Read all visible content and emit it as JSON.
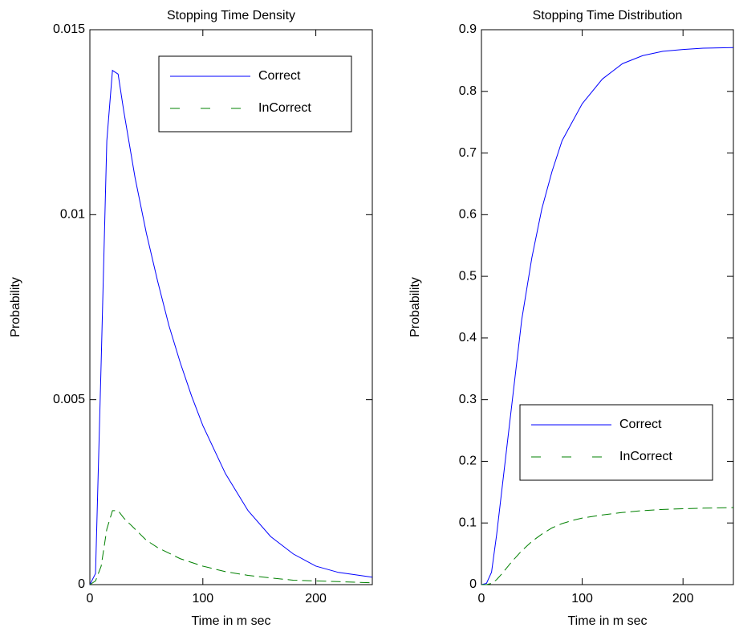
{
  "chart_data": [
    {
      "type": "line",
      "title": "Stopping Time Density",
      "xlabel": "Time in m sec",
      "ylabel": "Probability",
      "x": [
        0,
        5,
        10,
        15,
        20,
        25,
        30,
        40,
        50,
        60,
        70,
        80,
        90,
        100,
        120,
        140,
        160,
        180,
        200,
        220,
        250
      ],
      "series": [
        {
          "name": "Correct",
          "color": "#0000ff",
          "linestyle": "solid",
          "values": [
            0,
            0.0003,
            0.006,
            0.012,
            0.0139,
            0.0138,
            0.0128,
            0.011,
            0.0095,
            0.0082,
            0.007,
            0.006,
            0.0051,
            0.0043,
            0.003,
            0.002,
            0.0013,
            0.00083,
            0.0005,
            0.00033,
            0.0002
          ]
        },
        {
          "name": "InCorrect",
          "color": "#008000",
          "linestyle": "dashed",
          "values": [
            0,
            0.0001,
            0.0005,
            0.0015,
            0.002,
            0.002,
            0.0018,
            0.0015,
            0.0012,
            0.001,
            0.00085,
            0.0007,
            0.0006,
            0.0005,
            0.00035,
            0.00025,
            0.00018,
            0.00012,
            0.0001,
            8e-05,
            5e-05
          ]
        }
      ],
      "xlim": [
        0,
        250
      ],
      "xticks": [
        0,
        100,
        200
      ],
      "ylim": [
        0,
        0.015
      ],
      "yticks": [
        0,
        0.005,
        0.01,
        0.015
      ],
      "legend": "upper right"
    },
    {
      "type": "line",
      "title": "Stopping Time Distribution",
      "xlabel": "Time in m sec",
      "ylabel": "Probability",
      "x": [
        0,
        5,
        10,
        15,
        20,
        25,
        30,
        40,
        50,
        60,
        70,
        80,
        90,
        100,
        120,
        140,
        160,
        180,
        200,
        220,
        250
      ],
      "series": [
        {
          "name": "Correct",
          "color": "#0000ff",
          "linestyle": "solid",
          "values": [
            0,
            0.002,
            0.02,
            0.08,
            0.15,
            0.22,
            0.29,
            0.43,
            0.53,
            0.61,
            0.67,
            0.72,
            0.75,
            0.78,
            0.82,
            0.845,
            0.858,
            0.865,
            0.868,
            0.87,
            0.871
          ]
        },
        {
          "name": "InCorrect",
          "color": "#008000",
          "linestyle": "dashed",
          "values": [
            0,
            0,
            0.002,
            0.008,
            0.017,
            0.027,
            0.037,
            0.055,
            0.07,
            0.082,
            0.092,
            0.099,
            0.104,
            0.108,
            0.113,
            0.117,
            0.12,
            0.122,
            0.123,
            0.124,
            0.125
          ]
        }
      ],
      "xlim": [
        0,
        250
      ],
      "xticks": [
        0,
        100,
        200
      ],
      "ylim": [
        0,
        0.9
      ],
      "yticks": [
        0,
        0.1,
        0.2,
        0.3,
        0.4,
        0.5,
        0.6,
        0.7,
        0.8,
        0.9
      ],
      "legend": "lower right"
    }
  ]
}
